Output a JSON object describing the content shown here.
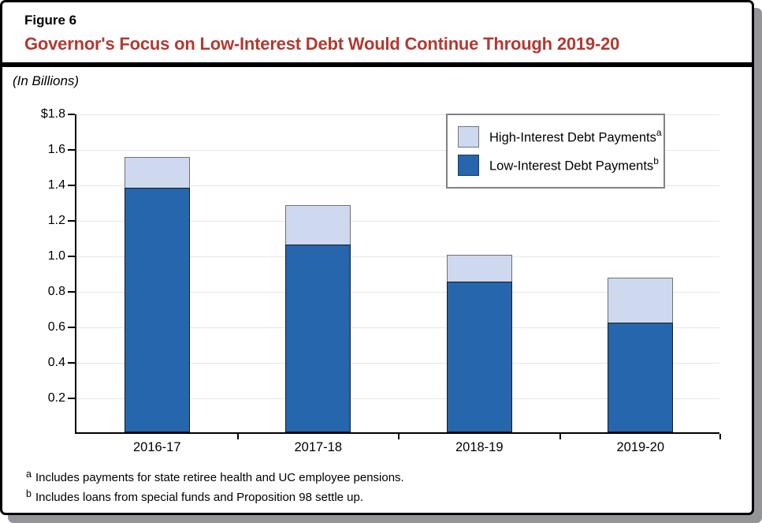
{
  "page": {
    "figure_label": "Figure 6",
    "title": "Governor's Focus on Low-Interest Debt Would Continue Through 2019-20",
    "title_color": "#B23931",
    "subtitle": "(In Billions)",
    "footnotes": [
      {
        "marker": "a",
        "text": "Includes payments for state retiree health and UC employee pensions."
      },
      {
        "marker": "b",
        "text": "Includes loans from special funds and Proposition 98 settle up."
      }
    ]
  },
  "chart_data": {
    "type": "bar",
    "stacked": true,
    "title": "Governor's Focus on Low-Interest Debt Would Continue Through 2019-20",
    "ylabel": "(In Billions)",
    "xlabel": "",
    "categories": [
      "2016-17",
      "2017-18",
      "2018-19",
      "2019-20"
    ],
    "series": [
      {
        "name": "Low-Interest Debt Payments",
        "superscript": "b",
        "color": "#2566AC",
        "values": [
          1.38,
          1.06,
          0.85,
          0.62
        ]
      },
      {
        "name": "High-Interest Debt Payments",
        "superscript": "a",
        "color": "#CED9F0",
        "values": [
          0.17,
          0.22,
          0.15,
          0.25
        ]
      }
    ],
    "totals": [
      1.55,
      1.28,
      1.0,
      0.87
    ],
    "ylim": [
      0,
      1.8
    ],
    "ytick_step": 0.2,
    "ytick_labels": [
      "0.2",
      "0.4",
      "0.6",
      "0.8",
      "1.0",
      "1.2",
      "1.4",
      "1.6",
      "$1.8"
    ],
    "grid": true,
    "legend_position": "top-right",
    "legend": [
      {
        "label": "High-Interest Debt Payments",
        "superscript": "a",
        "color": "#CED9F0",
        "border": "#6E7384"
      },
      {
        "label": "Low-Interest Debt Payments",
        "superscript": "b",
        "color": "#2566AC",
        "border": "#1A3A63"
      }
    ],
    "colors": {
      "grid": "#E7E7E7",
      "axis": "#000000"
    }
  }
}
